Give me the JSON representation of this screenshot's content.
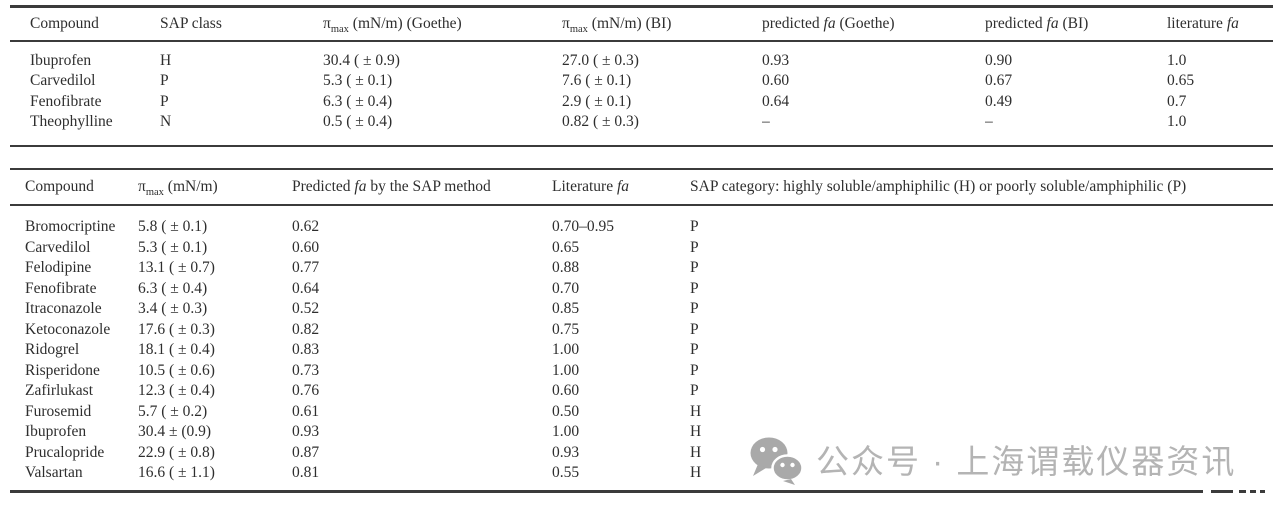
{
  "colors": {
    "ink": "#2e2e2e",
    "rule": "#3b3b3b",
    "watermark_text": "#b4b4b4",
    "watermark_icon": "#a9a9a9",
    "background": "#ffffff"
  },
  "table1": {
    "headers": [
      [
        {
          "t": "Compound"
        }
      ],
      [
        {
          "t": "SAP class"
        }
      ],
      [
        {
          "t": "π"
        },
        {
          "t": "max",
          "s": "sub"
        },
        {
          "t": " (mN/m) (Goethe)"
        }
      ],
      [
        {
          "t": "π"
        },
        {
          "t": "max",
          "s": "sub"
        },
        {
          "t": " (mN/m) (BI)"
        }
      ],
      [
        {
          "t": "predicted "
        },
        {
          "t": "fa",
          "s": "i"
        },
        {
          "t": " (Goethe)"
        }
      ],
      [
        {
          "t": "predicted "
        },
        {
          "t": "fa",
          "s": "i"
        },
        {
          "t": " (BI)"
        }
      ],
      [
        {
          "t": "literature "
        },
        {
          "t": "fa",
          "s": "i"
        }
      ]
    ],
    "rows": [
      [
        "Ibuprofen",
        "H",
        "30.4 ( ± 0.9)",
        "27.0 ( ± 0.3)",
        "0.93",
        "0.90",
        "1.0"
      ],
      [
        "Carvedilol",
        "P",
        "5.3 ( ± 0.1)",
        "7.6 ( ± 0.1)",
        "0.60",
        "0.67",
        "0.65"
      ],
      [
        "Fenofibrate",
        "P",
        "6.3 ( ± 0.4)",
        "2.9 ( ± 0.1)",
        "0.64",
        "0.49",
        "0.7"
      ],
      [
        "Theophylline",
        "N",
        "0.5 ( ± 0.4)",
        "0.82 ( ± 0.3)",
        "–",
        "–",
        "1.0"
      ]
    ]
  },
  "table2": {
    "headers": [
      [
        {
          "t": "Compound"
        }
      ],
      [
        {
          "t": "π"
        },
        {
          "t": "max",
          "s": "sub"
        },
        {
          "t": " (mN/m)"
        }
      ],
      [
        {
          "t": "Predicted "
        },
        {
          "t": "fa",
          "s": "i"
        },
        {
          "t": " by the SAP method"
        }
      ],
      [
        {
          "t": "Literature "
        },
        {
          "t": "fa",
          "s": "i"
        }
      ],
      [
        {
          "t": "SAP category: highly soluble/amphiphilic (H) or poorly soluble/amphiphilic (P)"
        }
      ]
    ],
    "rows": [
      [
        "Bromocriptine",
        "5.8 ( ± 0.1)",
        "0.62",
        "0.70–0.95",
        "P"
      ],
      [
        "Carvedilol",
        "5.3 ( ± 0.1)",
        "0.60",
        "0.65",
        "P"
      ],
      [
        "Felodipine",
        "13.1 ( ± 0.7)",
        "0.77",
        "0.88",
        "P"
      ],
      [
        "Fenofibrate",
        "6.3 ( ± 0.4)",
        "0.64",
        "0.70",
        "P"
      ],
      [
        "Itraconazole",
        "3.4 ( ± 0.3)",
        "0.52",
        "0.85",
        "P"
      ],
      [
        "Ketoconazole",
        "17.6 ( ± 0.3)",
        "0.82",
        "0.75",
        "P"
      ],
      [
        "Ridogrel",
        "18.1 ( ± 0.4)",
        "0.83",
        "1.00",
        "P"
      ],
      [
        "Risperidone",
        "10.5 ( ± 0.6)",
        "0.73",
        "1.00",
        "P"
      ],
      [
        "Zafirlukast",
        "12.3 ( ± 0.4)",
        "0.76",
        "0.60",
        "P"
      ],
      [
        "Furosemid",
        "5.7 ( ± 0.2)",
        "0.61",
        "0.50",
        "H"
      ],
      [
        "Ibuprofen",
        "30.4 ± (0.9)",
        "0.93",
        "1.00",
        "H"
      ],
      [
        "Prucalopride",
        "22.9 ( ± 0.8)",
        "0.87",
        "0.93",
        "H"
      ],
      [
        "Valsartan",
        "16.6 ( ± 1.1)",
        "0.81",
        "0.55",
        "H"
      ]
    ]
  },
  "watermark": {
    "icon": "wechat-icon",
    "text": "公众号 · 上海谓载仪器资讯"
  }
}
